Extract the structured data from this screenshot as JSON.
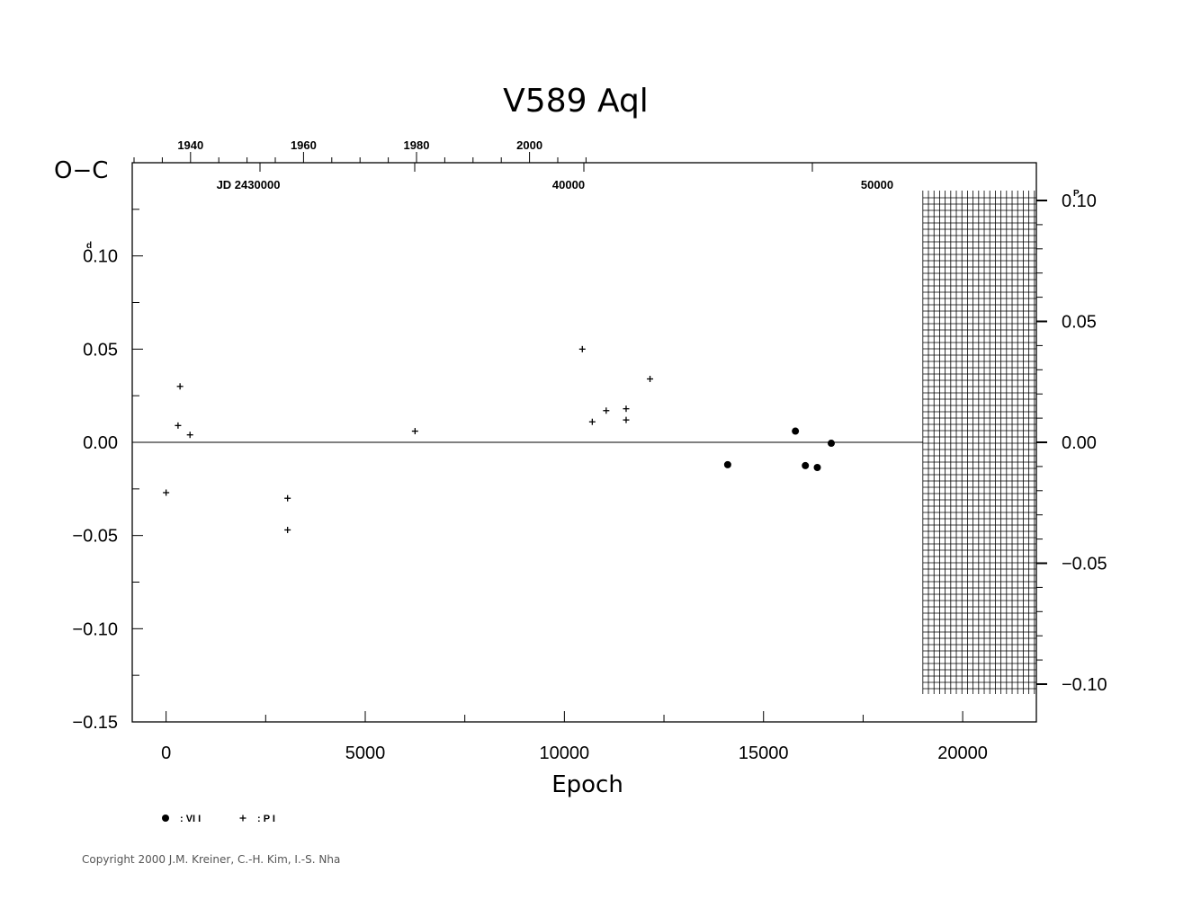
{
  "chart_data": {
    "type": "scatter",
    "title": "V589  Aql",
    "xlabel": "Epoch",
    "ylabel": "O−C",
    "y_unit_left": "d",
    "y_unit_right": "P",
    "xlim": [
      -850,
      21850
    ],
    "ylim": [
      -0.15,
      0.15
    ],
    "x_ticks": [
      0,
      5000,
      10000,
      15000,
      20000
    ],
    "x_tick_labels": [
      "0",
      "5000",
      "10000",
      "15000",
      "20000"
    ],
    "y_ticks": [
      0.1,
      0.05,
      0.0,
      -0.05,
      -0.1,
      -0.15
    ],
    "y_tick_labels": [
      "0.10",
      "0.05",
      "0.00",
      "−0.05",
      "−0.10",
      "−0.15"
    ],
    "right_y_ticks": [
      0.1,
      0.05,
      0.0,
      -0.05,
      -0.1
    ],
    "right_y_tick_labels": [
      "0.10",
      "0.05",
      "0.00",
      "−0.05",
      "−0.10"
    ],
    "top_year_ticks": [
      1940,
      1960,
      1980,
      2000
    ],
    "top_year_labels": [
      "1940",
      "1960",
      "1980",
      "2000"
    ],
    "jd_labels": [
      "JD  2430000",
      "40000",
      "50000"
    ],
    "future_hatched_from_epoch": 19000,
    "zero_line": true,
    "legend": [
      {
        "marker": "dot",
        "label": ": VI I"
      },
      {
        "marker": "plus",
        "label": ": P I"
      }
    ],
    "series": [
      {
        "name": "VI I",
        "marker": "dot",
        "points": [
          {
            "x": 14100,
            "y": -0.012
          },
          {
            "x": 15800,
            "y": 0.006
          },
          {
            "x": 16050,
            "y": -0.0125
          },
          {
            "x": 16350,
            "y": -0.0135
          },
          {
            "x": 16700,
            "y": -0.0005
          }
        ]
      },
      {
        "name": "P I",
        "marker": "plus",
        "points": [
          {
            "x": 0,
            "y": -0.027
          },
          {
            "x": 300,
            "y": 0.009
          },
          {
            "x": 350,
            "y": 0.03
          },
          {
            "x": 600,
            "y": 0.004
          },
          {
            "x": 3050,
            "y": -0.03
          },
          {
            "x": 3050,
            "y": -0.047
          },
          {
            "x": 6250,
            "y": 0.006
          },
          {
            "x": 10450,
            "y": 0.05
          },
          {
            "x": 10700,
            "y": 0.011
          },
          {
            "x": 11050,
            "y": 0.017
          },
          {
            "x": 11550,
            "y": 0.018
          },
          {
            "x": 11550,
            "y": 0.012
          },
          {
            "x": 12150,
            "y": 0.034
          }
        ]
      }
    ]
  },
  "copyright": "Copyright 2000 J.M. Kreiner, C.-H. Kim, I.-S. Nha"
}
